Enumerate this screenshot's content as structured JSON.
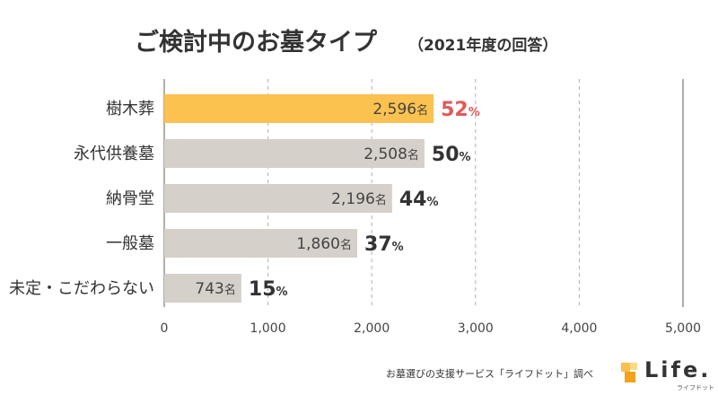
{
  "chart_data": {
    "type": "bar",
    "orientation": "horizontal",
    "title": "ご検討中のお墓タイプ",
    "subtitle": "（2021年度の回答）",
    "categories": [
      "樹木葬",
      "永代供養墓",
      "納骨堂",
      "一般墓",
      "未定・こだわらない"
    ],
    "values": [
      2596,
      2508,
      2196,
      1860,
      743
    ],
    "value_labels": [
      "2,596",
      "2,508",
      "2,196",
      "1,860",
      "743"
    ],
    "value_unit": "名",
    "percents": [
      "52",
      "50",
      "44",
      "37",
      "15"
    ],
    "percent_sign": "%",
    "highlight_index": 0,
    "xlim": [
      0,
      5000
    ],
    "xticks": [
      0,
      1000,
      2000,
      3000,
      4000,
      5000
    ],
    "xtick_labels": [
      "0",
      "1,000",
      "2,000",
      "3,000",
      "4,000",
      "5,000"
    ],
    "grid": "dashed vertical",
    "colors": {
      "highlight_bar": "#fbc250",
      "bar": "#d6d0ca",
      "highlight_percent": "#e05a5a",
      "percent": "#333333",
      "grid": "#b8aea5",
      "axis": "#9a928a"
    }
  },
  "footer": {
    "source": "お墓選びの支援サービス「ライフドット」調べ"
  },
  "logo": {
    "word": "Life.",
    "sub": "ライフドット"
  }
}
